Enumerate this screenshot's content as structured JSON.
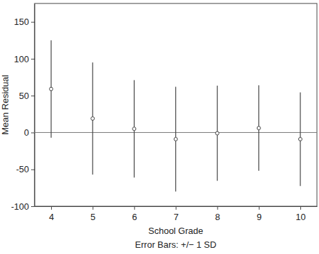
{
  "chart_data": {
    "type": "errorbar",
    "x_label": "School Grade",
    "y_label": "Mean Residual",
    "caption": "Error Bars: +/− 1 SD",
    "x": [
      4,
      5,
      6,
      7,
      8,
      9,
      10
    ],
    "values": [
      59,
      19,
      5,
      -9,
      -1,
      6,
      -9
    ],
    "errors": [
      66,
      76,
      66,
      71,
      64.5,
      58,
      63.5
    ],
    "reference_line": 0,
    "xlim": [
      3.6,
      10.4
    ],
    "xticks": [
      4,
      5,
      6,
      7,
      8,
      9,
      10
    ],
    "ylim": [
      -100,
      175
    ],
    "yticks": [
      -100,
      -50,
      0,
      50,
      100,
      150
    ],
    "marker": "circle",
    "color": "#444444",
    "grid": false
  }
}
